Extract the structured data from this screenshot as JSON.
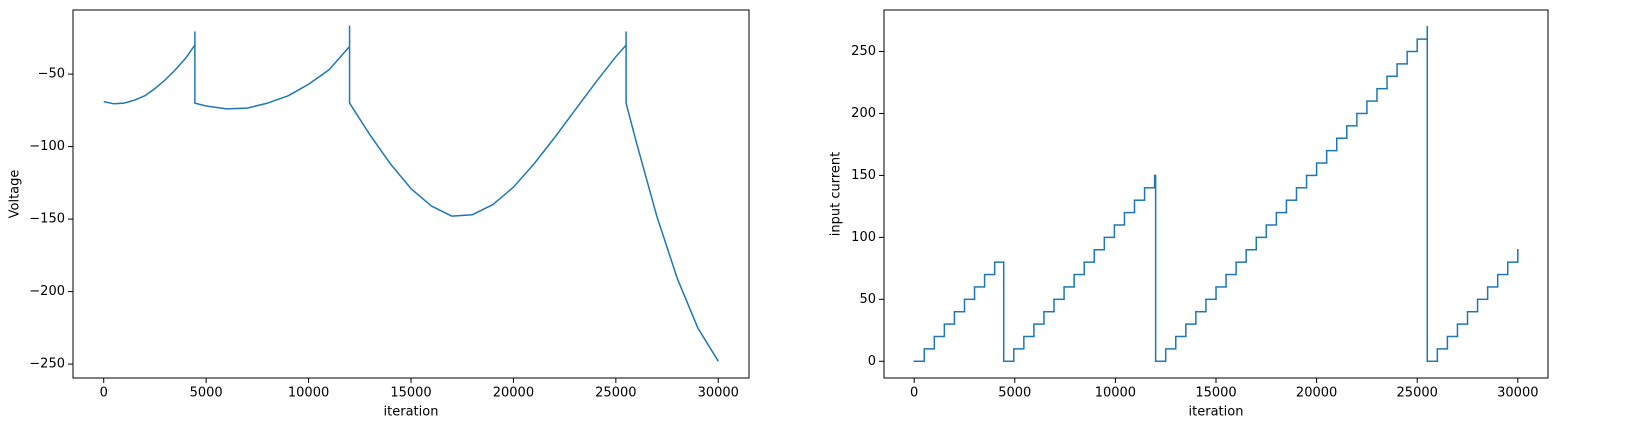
{
  "chart_data": [
    {
      "type": "line",
      "x_label": "iteration",
      "y_label": "Voltage",
      "color": "#1f77b4",
      "x": [
        0,
        500,
        1000,
        1500,
        2000,
        2500,
        3000,
        3500,
        4000,
        4450,
        4450,
        4450,
        5000,
        6000,
        7000,
        8000,
        9000,
        10000,
        11000,
        12000,
        12000,
        12000,
        13000,
        14000,
        15000,
        16000,
        17000,
        18000,
        19000,
        20000,
        21000,
        22000,
        23000,
        24000,
        25000,
        25500,
        25500,
        25500,
        26000,
        27000,
        28000,
        29000,
        30000
      ],
      "values": [
        -69,
        -70.5,
        -70,
        -68,
        -65,
        -60,
        -54,
        -47,
        -39,
        -30,
        -21,
        -70,
        -72,
        -74,
        -73.5,
        -70,
        -65,
        -57,
        -47,
        -31,
        -17,
        -70,
        -92,
        -112,
        -129,
        -141,
        -148,
        -147,
        -140,
        -128,
        -112,
        -94,
        -75,
        -56,
        -38,
        -30,
        -21,
        -70,
        -97,
        -148,
        -191,
        -225,
        -248
      ],
      "xlim": [
        -1500,
        31500
      ],
      "xticks": [
        0,
        5000,
        10000,
        15000,
        20000,
        25000,
        30000
      ],
      "ylim": [
        -259.6,
        -5.8
      ],
      "yticks": [
        {
          "value": -250,
          "label": "−250"
        },
        {
          "value": -200,
          "label": "−200"
        },
        {
          "value": -150,
          "label": "−150"
        },
        {
          "value": -100,
          "label": "−100"
        },
        {
          "value": -50,
          "label": "−50"
        }
      ]
    },
    {
      "type": "line",
      "drawstyle": "steps-post",
      "x_label": "iteration",
      "y_label": "input current",
      "color": "#1f77b4",
      "x": [
        0,
        500,
        1000,
        1500,
        2000,
        2500,
        3000,
        3500,
        4000,
        4450,
        4950,
        5450,
        5950,
        6450,
        6950,
        7450,
        7950,
        8450,
        8950,
        9450,
        9950,
        10450,
        10950,
        11450,
        11950,
        12000,
        12500,
        13000,
        13500,
        14000,
        14500,
        15000,
        15500,
        16000,
        16500,
        17000,
        17500,
        18000,
        18500,
        19000,
        19500,
        20000,
        20500,
        21000,
        21500,
        22000,
        22500,
        23000,
        23500,
        24000,
        24500,
        25000,
        25500,
        25500,
        26000,
        26500,
        27000,
        27500,
        28000,
        28500,
        29000,
        29500,
        30000
      ],
      "values": [
        0,
        10,
        20,
        30,
        40,
        50,
        60,
        70,
        80,
        0,
        10,
        20,
        30,
        40,
        50,
        60,
        70,
        80,
        90,
        100,
        110,
        120,
        130,
        140,
        150,
        0,
        10,
        20,
        30,
        40,
        50,
        60,
        70,
        80,
        90,
        100,
        110,
        120,
        130,
        140,
        150,
        160,
        170,
        180,
        190,
        200,
        210,
        220,
        230,
        240,
        250,
        260,
        270,
        0,
        10,
        20,
        30,
        40,
        50,
        60,
        70,
        80,
        90
      ],
      "xlim": [
        -1500,
        31500
      ],
      "xticks": [
        0,
        5000,
        10000,
        15000,
        20000,
        25000,
        30000
      ],
      "ylim": [
        -13.5,
        283.5
      ],
      "yticks": [
        0,
        50,
        100,
        150,
        200,
        250
      ]
    }
  ]
}
